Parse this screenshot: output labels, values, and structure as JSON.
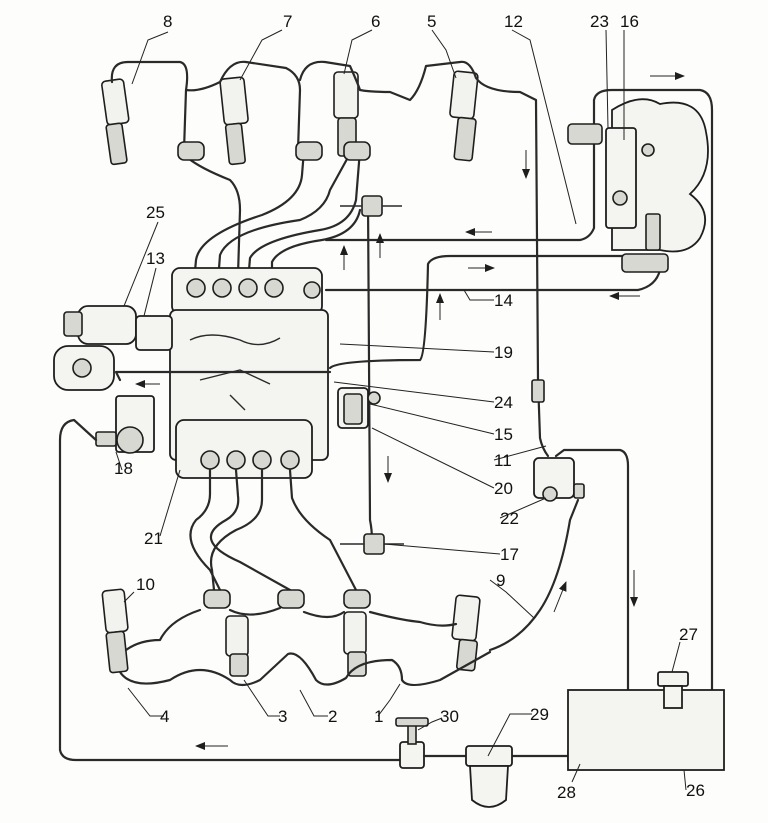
{
  "labels": {
    "n1": "1",
    "n2": "2",
    "n3": "3",
    "n4": "4",
    "n5": "5",
    "n6": "6",
    "n7": "7",
    "n8": "8",
    "n9": "9",
    "n10": "10",
    "n11": "11",
    "n12": "12",
    "n13": "13",
    "n14": "14",
    "n15": "15",
    "n16": "16",
    "n17": "17",
    "n18": "18",
    "n19": "19",
    "n20": "20",
    "n21": "21",
    "n22": "22",
    "n23": "23",
    "n24": "24",
    "n25": "25",
    "n26": "26",
    "n27": "27",
    "n28": "28",
    "n29": "29",
    "n30": "30"
  }
}
